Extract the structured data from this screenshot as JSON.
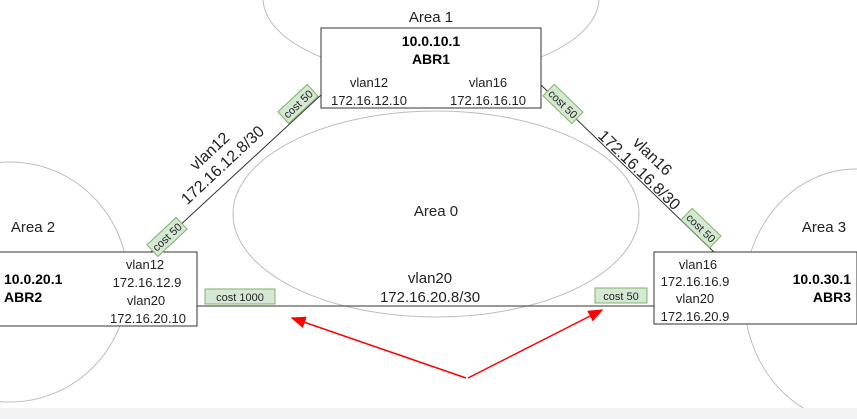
{
  "areas": {
    "area0": "Area 0",
    "area1": "Area 1",
    "area2": "Area 2",
    "area3": "Area 3"
  },
  "routers": {
    "abr1": {
      "ip": "10.0.10.1",
      "name": "ABR1",
      "if1_vlan": "vlan12",
      "if1_ip": "172.16.12.10",
      "if2_vlan": "vlan16",
      "if2_ip": "172.16.16.10"
    },
    "abr2": {
      "ip": "10.0.20.1",
      "name": "ABR2",
      "if1_vlan": "vlan12",
      "if1_ip": "172.16.12.9",
      "if2_vlan": "vlan20",
      "if2_ip": "172.16.20.10"
    },
    "abr3": {
      "ip": "10.0.30.1",
      "name": "ABR3",
      "if1_vlan": "vlan16",
      "if1_ip": "172.16.16.9",
      "if2_vlan": "vlan20",
      "if2_ip": "172.16.20.9"
    }
  },
  "links": {
    "vlan12": {
      "vlan": "vlan12",
      "subnet": "172.16.12.8/30",
      "cost_abr1": "cost 50",
      "cost_abr2": "cost 50"
    },
    "vlan16": {
      "vlan": "vlan16",
      "subnet": "172.16.16.8/30",
      "cost_abr1": "cost 50",
      "cost_abr3": "cost 50"
    },
    "vlan20": {
      "vlan": "vlan20",
      "subnet": "172.16.20.8/30",
      "cost_abr2": "cost 1000",
      "cost_abr3": "cost 50"
    }
  },
  "colors": {
    "cost_fill": "#d5e8d4",
    "cost_border": "#82b366",
    "arrow": "#ff0000",
    "area_outline": "#bdbdbd"
  }
}
